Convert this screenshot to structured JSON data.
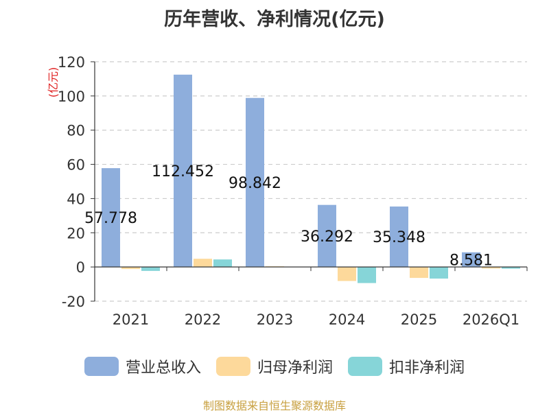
{
  "title": "历年营收、净利情况(亿元)",
  "source_note": "制图数据来自恒生聚源数据库",
  "colors": {
    "revenue": "#8eaedc",
    "parent_net_profit": "#fdd99b",
    "deducted_net_profit": "#86d5d8",
    "axis": "#333333",
    "grid": "#cccccc",
    "y_unit": "#e02020"
  },
  "chart_data": {
    "type": "bar",
    "title": "历年营收、净利情况(亿元)",
    "ylabel": "(亿元)",
    "xlabel": "",
    "categories": [
      "2021",
      "2022",
      "2023",
      "2024",
      "2025",
      "2026Q1"
    ],
    "ylim": [
      -20,
      120
    ],
    "yticks": [
      -20,
      0,
      20,
      40,
      60,
      80,
      100,
      120
    ],
    "grid": true,
    "legend_position": "bottom",
    "series": [
      {
        "name": "营业总收入",
        "values": [
          57.778,
          112.452,
          98.842,
          36.292,
          35.348,
          8.581
        ],
        "labels": [
          "57.778",
          "112.452",
          "98.842",
          "36.292",
          "35.348",
          "8.581"
        ]
      },
      {
        "name": "归母净利润",
        "values": [
          -1.2,
          4.8,
          0.4,
          -8.2,
          -6.4,
          -0.9
        ]
      },
      {
        "name": "扣非净利润",
        "values": [
          -2.3,
          4.4,
          0.1,
          -9.4,
          -6.8,
          -1.0
        ]
      }
    ]
  }
}
